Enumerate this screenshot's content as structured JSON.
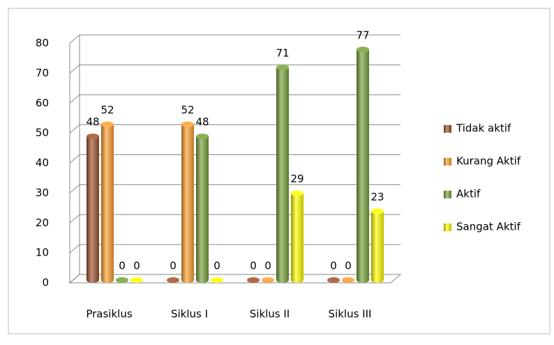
{
  "chart_data": {
    "type": "bar",
    "categories": [
      "Prasiklus",
      "Siklus I",
      "Siklus II",
      "Siklus III"
    ],
    "series": [
      {
        "name": "Tidak aktif",
        "color": "#a0522d",
        "values": [
          48,
          0,
          0,
          0
        ]
      },
      {
        "name": "Kurang Aktif",
        "color": "#ffa030",
        "values": [
          52,
          52,
          0,
          0
        ]
      },
      {
        "name": "Aktif",
        "color": "#77a33a",
        "values": [
          0,
          48,
          71,
          77
        ]
      },
      {
        "name": "Sangat Aktif",
        "color": "#ffff00",
        "values": [
          0,
          0,
          29,
          23
        ]
      }
    ],
    "ylim": [
      0,
      80
    ],
    "yticks": [
      0,
      10,
      20,
      30,
      40,
      50,
      60,
      70,
      80
    ],
    "grid": true,
    "legend": "right"
  }
}
